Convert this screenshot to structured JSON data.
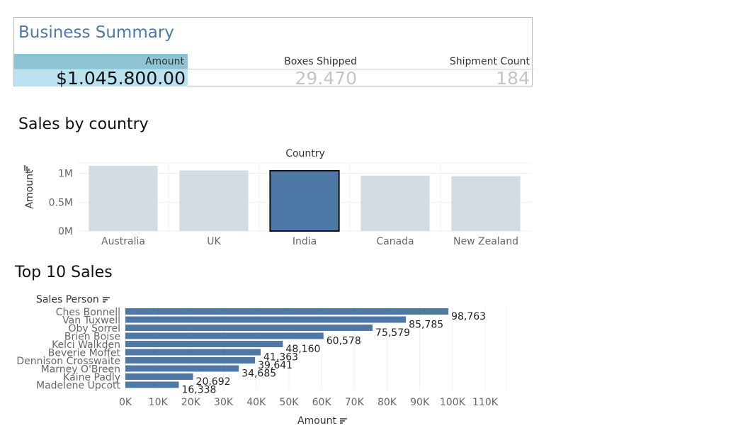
{
  "summary": {
    "title": "Business Summary",
    "amount_label": "Amount",
    "boxes_label": "Boxes Shipped",
    "count_label": "Shipment Count",
    "amount_value": "$1.045.800.00",
    "boxes_value": "29.470",
    "count_value": "184"
  },
  "country_chart": {
    "section_title": "Sales by country",
    "column_header": "Country",
    "ylabel": "Amount",
    "selected": "India",
    "colors": {
      "default": "#d4dce3",
      "selected": "#4e79a7"
    }
  },
  "sales_chart": {
    "section_title": "Top 10 Sales",
    "row_header": "Sales Person",
    "xlabel": "Amount",
    "bar_color": "#4e79a7"
  },
  "chart_data": [
    {
      "type": "bar",
      "title": "Sales by country",
      "categories": [
        "Australia",
        "UK",
        "India",
        "Canada",
        "New Zealand"
      ],
      "values": [
        1130000,
        1050000,
        1045800,
        960000,
        950000
      ],
      "xlabel": "Country",
      "ylabel": "Amount",
      "yticks": [
        "0M",
        "0.5M",
        "1M"
      ],
      "ytick_values": [
        0,
        500000,
        1000000
      ],
      "ylim": [
        0,
        1180000
      ]
    },
    {
      "type": "bar",
      "orientation": "horizontal",
      "title": "Top 10 Sales",
      "categories": [
        "Ches Bonnell",
        "Van Tuxwell",
        "Oby Sorrel",
        "Brien Boise",
        "Kelci Walkden",
        "Beverie Moffet",
        "Dennison Crosswaite",
        "Marney O'Breen",
        "Kaine Padly",
        "Madelene Upcott"
      ],
      "values": [
        98763,
        85785,
        75579,
        60578,
        48160,
        41363,
        39641,
        34685,
        20692,
        16338
      ],
      "labels": [
        "98,763",
        "85,785",
        "75,579",
        "60,578",
        "48,160",
        "41,363",
        "39,641",
        "34,685",
        "20,692",
        "16,338"
      ],
      "xticks": [
        "0K",
        "10K",
        "20K",
        "30K",
        "40K",
        "50K",
        "60K",
        "70K",
        "80K",
        "90K",
        "100K",
        "110K"
      ],
      "xlim": [
        0,
        110000
      ],
      "xlabel": "Amount",
      "ylabel": "Sales Person"
    }
  ]
}
